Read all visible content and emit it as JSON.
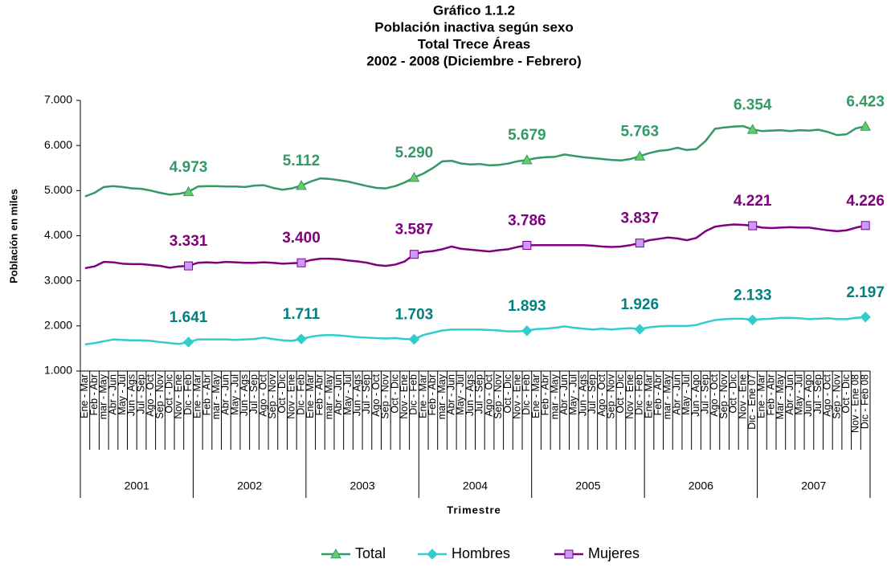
{
  "chart_data": {
    "type": "line",
    "title": [
      "Gráfico 1.1.2",
      "Población inactiva según sexo",
      "Total Trece Áreas",
      "2002 - 2008 (Diciembre - Febrero)"
    ],
    "y_label": "Población en miles",
    "x_label": "Trimestre",
    "groups": [
      "2001",
      "2002",
      "2003",
      "2004",
      "2005",
      "2006",
      "2007"
    ],
    "categories": [
      "Ene - Mar",
      "Feb - Abr",
      "mar - May",
      "Abr - Jun",
      "May - Jul",
      "Jun - Ags",
      "Jul - Sep",
      "Ago - Oct",
      "Sep - Nov",
      "Oct - Dic",
      "Nov - Ene",
      "Dic - Feb",
      "Ene - Mar",
      "Feb - Abr",
      "mar - May",
      "Abr - Jun",
      "May - Jul",
      "Jun - Ags",
      "Jul - Sep",
      "Ago - Oct",
      "Sep - Nov",
      "Oct - Dic",
      "Nov - Ene",
      "Dic - Feb",
      "Ene - Mar",
      "Feb - Abr",
      "mar - May",
      "Abr - Jun",
      "May - Jul",
      "Jun - Ags",
      "Jul - Sep",
      "Ago - Oct",
      "Sep - Nov",
      "Oct - Dic",
      "Nov - Ene",
      "Dic - Feb",
      "Ene - Mar",
      "Feb - Abr",
      "mar - May",
      "Abr - Jun",
      "May - Jul",
      "Jun - Ags",
      "Jul - Sep",
      "Ago - Oct",
      "Sep - Nov",
      "Oct - Dic",
      "Nov - Ene",
      "Dic - Feb",
      "Ene - Mar",
      "Feb - Abr",
      "mar - May",
      "Abr - Jun",
      "May - Jul",
      "Jun - Ags",
      "Jul - Sep",
      "Ago - Oct",
      "Sep - Nov",
      "Oct - Dic",
      "Nov - Ene",
      "Dic - Feb",
      "Ene - Mar",
      "Feb - Abr",
      "mar - May",
      "Abr - Jun",
      "May - Jul",
      "Jun - Ago",
      "Jul - Sep",
      "Ago - Oct",
      "Sep - Nov",
      "Oct - Dic",
      "Nov - Ene",
      "Dic - Ene 07",
      "Ene - Mar",
      "Feb - Abr",
      "Mar - May",
      "Abr - Jun",
      "May - Jul",
      "Jun - Ago",
      "Jul - Sep",
      "Ago - Oct",
      "Sep - Nov",
      "Oct - Dic",
      "Nov - Ene 08",
      "Dic - Feb 08"
    ],
    "ylim": [
      1000,
      7000
    ],
    "yticks": [
      {
        "value": 1000,
        "label": "1.000"
      },
      {
        "value": 2000,
        "label": "2.000"
      },
      {
        "value": 3000,
        "label": "3.000"
      },
      {
        "value": 4000,
        "label": "4.000"
      },
      {
        "value": 5000,
        "label": "5.000"
      },
      {
        "value": 6000,
        "label": "6.000"
      },
      {
        "value": 7000,
        "label": "7.000"
      }
    ],
    "grid": false,
    "legend": "bottom",
    "series": [
      {
        "name": "Total",
        "color": "#339966",
        "marker": "triangle",
        "marker_color": "#66cc66",
        "label_color": "#339966",
        "values": [
          4870,
          4950,
          5080,
          5100,
          5080,
          5050,
          5040,
          5000,
          4950,
          4910,
          4930,
          4973,
          5090,
          5100,
          5100,
          5090,
          5090,
          5080,
          5110,
          5120,
          5060,
          5020,
          5050,
          5112,
          5200,
          5270,
          5260,
          5230,
          5200,
          5150,
          5100,
          5060,
          5050,
          5100,
          5180,
          5290,
          5380,
          5500,
          5650,
          5660,
          5600,
          5580,
          5590,
          5560,
          5570,
          5600,
          5650,
          5679,
          5720,
          5740,
          5750,
          5800,
          5770,
          5740,
          5720,
          5700,
          5680,
          5670,
          5700,
          5763,
          5830,
          5880,
          5900,
          5950,
          5900,
          5920,
          6100,
          6370,
          6400,
          6420,
          6430,
          6354,
          6320,
          6330,
          6340,
          6320,
          6340,
          6330,
          6350,
          6300,
          6230,
          6250,
          6380,
          6423
        ],
        "value_labels": [
          null,
          null,
          null,
          null,
          null,
          null,
          null,
          null,
          null,
          null,
          null,
          "4.973",
          null,
          null,
          null,
          null,
          null,
          null,
          null,
          null,
          null,
          null,
          null,
          "5.112",
          null,
          null,
          null,
          null,
          null,
          null,
          null,
          null,
          null,
          null,
          null,
          "5.290",
          null,
          null,
          null,
          null,
          null,
          null,
          null,
          null,
          null,
          null,
          null,
          "5.679",
          null,
          null,
          null,
          null,
          null,
          null,
          null,
          null,
          null,
          null,
          null,
          "5.763",
          null,
          null,
          null,
          null,
          null,
          null,
          null,
          null,
          null,
          null,
          null,
          "6.354",
          null,
          null,
          null,
          null,
          null,
          null,
          null,
          null,
          null,
          null,
          null,
          "6.423"
        ]
      },
      {
        "name": "Hombres",
        "color": "#33cccc",
        "marker": "diamond",
        "marker_color": "#33cccc",
        "label_color": "#008080",
        "values": [
          1590,
          1620,
          1660,
          1700,
          1690,
          1680,
          1680,
          1670,
          1640,
          1620,
          1600,
          1641,
          1700,
          1700,
          1700,
          1700,
          1690,
          1700,
          1710,
          1740,
          1710,
          1680,
          1670,
          1711,
          1760,
          1790,
          1800,
          1790,
          1770,
          1750,
          1740,
          1730,
          1720,
          1730,
          1710,
          1703,
          1800,
          1850,
          1900,
          1920,
          1920,
          1920,
          1920,
          1910,
          1900,
          1880,
          1880,
          1893,
          1930,
          1940,
          1960,
          1990,
          1960,
          1940,
          1920,
          1940,
          1920,
          1940,
          1950,
          1926,
          1970,
          1990,
          2000,
          2000,
          2000,
          2020,
          2080,
          2130,
          2150,
          2160,
          2160,
          2133,
          2150,
          2160,
          2180,
          2180,
          2170,
          2150,
          2160,
          2170,
          2150,
          2150,
          2180,
          2197
        ],
        "value_labels": [
          null,
          null,
          null,
          null,
          null,
          null,
          null,
          null,
          null,
          null,
          null,
          "1.641",
          null,
          null,
          null,
          null,
          null,
          null,
          null,
          null,
          null,
          null,
          null,
          "1.711",
          null,
          null,
          null,
          null,
          null,
          null,
          null,
          null,
          null,
          null,
          null,
          "1.703",
          null,
          null,
          null,
          null,
          null,
          null,
          null,
          null,
          null,
          null,
          null,
          "1.893",
          null,
          null,
          null,
          null,
          null,
          null,
          null,
          null,
          null,
          null,
          null,
          "1.926",
          null,
          null,
          null,
          null,
          null,
          null,
          null,
          null,
          null,
          null,
          null,
          "2.133",
          null,
          null,
          null,
          null,
          null,
          null,
          null,
          null,
          null,
          null,
          null,
          "2.197"
        ]
      },
      {
        "name": "Mujeres",
        "color": "#800080",
        "marker": "square",
        "marker_color": "#cc99ff",
        "label_color": "#800080",
        "values": [
          3280,
          3320,
          3420,
          3410,
          3380,
          3370,
          3370,
          3350,
          3330,
          3290,
          3320,
          3331,
          3400,
          3410,
          3400,
          3420,
          3410,
          3400,
          3400,
          3410,
          3400,
          3380,
          3390,
          3400,
          3460,
          3490,
          3490,
          3480,
          3450,
          3430,
          3400,
          3350,
          3330,
          3360,
          3430,
          3587,
          3640,
          3660,
          3700,
          3760,
          3710,
          3690,
          3670,
          3650,
          3680,
          3700,
          3750,
          3786,
          3790,
          3790,
          3790,
          3790,
          3790,
          3790,
          3780,
          3760,
          3750,
          3760,
          3790,
          3837,
          3900,
          3930,
          3960,
          3940,
          3900,
          3950,
          4100,
          4200,
          4230,
          4250,
          4240,
          4221,
          4180,
          4170,
          4180,
          4190,
          4180,
          4180,
          4150,
          4120,
          4100,
          4120,
          4180,
          4226
        ],
        "value_labels": [
          null,
          null,
          null,
          null,
          null,
          null,
          null,
          null,
          null,
          null,
          null,
          "3.331",
          null,
          null,
          null,
          null,
          null,
          null,
          null,
          null,
          null,
          null,
          null,
          "3.400",
          null,
          null,
          null,
          null,
          null,
          null,
          null,
          null,
          null,
          null,
          null,
          "3.587",
          null,
          null,
          null,
          null,
          null,
          null,
          null,
          null,
          null,
          null,
          null,
          "3.786",
          null,
          null,
          null,
          null,
          null,
          null,
          null,
          null,
          null,
          null,
          null,
          "3.837",
          null,
          null,
          null,
          null,
          null,
          null,
          null,
          null,
          null,
          null,
          null,
          "4.221",
          null,
          null,
          null,
          null,
          null,
          null,
          null,
          null,
          null,
          null,
          null,
          "4.226"
        ]
      }
    ]
  }
}
